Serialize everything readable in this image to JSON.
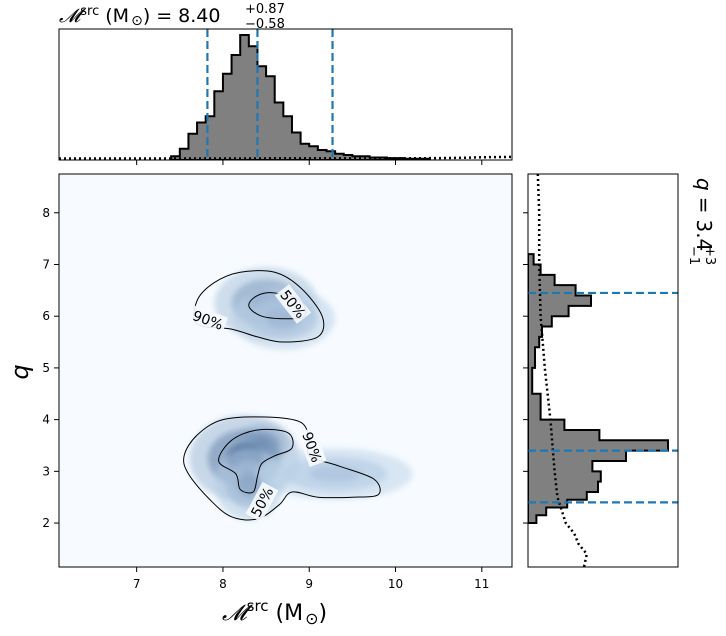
{
  "chart_data": {
    "type": "corner",
    "top_title": "𝓜src (M⊙) = 8.40+0.87−0.58",
    "top_title_parts": {
      "base": "𝓜",
      "sup": "src",
      "unit": "(M",
      "odot": "⊙",
      "close": ")",
      "eq": "=",
      "median": "8.40",
      "upper": "+0.87",
      "lower": "−0.58"
    },
    "right_title_parts": {
      "symbol": "q",
      "eq": "=",
      "median": "3.4",
      "upper": "+3",
      "lower": "−1"
    },
    "xlabel_parts": {
      "base": "𝓜",
      "sup": "src",
      "unit": "(M",
      "odot": "⊙",
      "close": ")"
    },
    "ylabel": "q",
    "xlim": [
      6.1,
      11.35
    ],
    "ylim": [
      1.15,
      8.75
    ],
    "xticks": [
      "7",
      "8",
      "9",
      "10",
      "11"
    ],
    "yticks": [
      "2",
      "3",
      "4",
      "5",
      "6",
      "7",
      "8"
    ],
    "quantile_lines_x": [
      7.82,
      8.4,
      9.27
    ],
    "quantile_lines_y": [
      2.4,
      3.4,
      6.45
    ],
    "contour_labels": [
      "50%",
      "90%",
      "90%",
      "50%"
    ],
    "mass_histogram": {
      "bin_edges": [
        7.4,
        7.5,
        7.6,
        7.7,
        7.8,
        7.9,
        8.0,
        8.1,
        8.2,
        8.3,
        8.4,
        8.5,
        8.6,
        8.7,
        8.8,
        8.9,
        9.0,
        9.1,
        9.2,
        9.3,
        9.4,
        9.5,
        9.7,
        9.9,
        10.1,
        10.4
      ],
      "counts": [
        0.03,
        0.09,
        0.21,
        0.3,
        0.35,
        0.55,
        0.69,
        0.84,
        1.0,
        0.91,
        0.75,
        0.67,
        0.46,
        0.35,
        0.22,
        0.13,
        0.11,
        0.08,
        0.07,
        0.05,
        0.04,
        0.03,
        0.02,
        0.015,
        0.01
      ]
    },
    "q_histogram": {
      "bin_edges": [
        2.0,
        2.15,
        2.3,
        2.45,
        2.6,
        2.8,
        3.0,
        3.2,
        3.4,
        3.6,
        3.8,
        4.0,
        4.5,
        5.0,
        5.4,
        5.6,
        5.8,
        6.0,
        6.2,
        6.4,
        6.6,
        6.8,
        7.0,
        7.2
      ],
      "counts": [
        0.06,
        0.13,
        0.28,
        0.42,
        0.5,
        0.52,
        0.46,
        0.7,
        1.0,
        0.51,
        0.26,
        0.09,
        0.03,
        0.05,
        0.08,
        0.1,
        0.17,
        0.29,
        0.45,
        0.34,
        0.19,
        0.09,
        0.04
      ]
    },
    "prior_mass_curve": {
      "x": [
        6.1,
        7.0,
        8.0,
        9.0,
        10.0,
        10.5,
        10.8,
        11.0,
        11.35
      ],
      "y": [
        0.012,
        0.012,
        0.012,
        0.013,
        0.013,
        0.015,
        0.018,
        0.022,
        0.025
      ]
    },
    "prior_q_curve": {
      "q": [
        8.75,
        8.0,
        7.0,
        6.0,
        5.0,
        4.0,
        3.0,
        2.5,
        2.0,
        1.8,
        1.6,
        1.4,
        1.15
      ],
      "density": [
        0.07,
        0.08,
        0.08,
        0.09,
        0.12,
        0.16,
        0.19,
        0.21,
        0.27,
        0.33,
        0.36,
        0.42,
        0.4
      ]
    },
    "density_blobs": [
      {
        "cx": 8.45,
        "cy": 3.52,
        "sx": 0.16,
        "sy": 0.2,
        "w": 1.0
      },
      {
        "cx": 8.25,
        "cy": 3.25,
        "sx": 0.32,
        "sy": 0.42,
        "w": 0.65
      },
      {
        "cx": 8.3,
        "cy": 2.75,
        "sx": 0.2,
        "sy": 0.35,
        "w": 0.3
      },
      {
        "cx": 9.3,
        "cy": 2.95,
        "sx": 0.45,
        "sy": 0.25,
        "w": 0.12
      },
      {
        "cx": 8.5,
        "cy": 6.25,
        "sx": 0.3,
        "sy": 0.35,
        "w": 0.45
      },
      {
        "cx": 8.7,
        "cy": 5.95,
        "sx": 0.3,
        "sy": 0.3,
        "w": 0.2
      }
    ],
    "contours": {
      "lower_90": [
        [
          7.6,
          2.95
        ],
        [
          7.55,
          3.3
        ],
        [
          7.7,
          3.7
        ],
        [
          8.0,
          4.0
        ],
        [
          8.5,
          4.05
        ],
        [
          8.9,
          3.95
        ],
        [
          9.0,
          3.6
        ],
        [
          9.0,
          3.3
        ],
        [
          9.35,
          3.1
        ],
        [
          9.75,
          2.85
        ],
        [
          9.8,
          2.55
        ],
        [
          9.5,
          2.5
        ],
        [
          9.1,
          2.5
        ],
        [
          8.8,
          2.6
        ],
        [
          8.65,
          2.35
        ],
        [
          8.4,
          2.08
        ],
        [
          8.1,
          2.12
        ],
        [
          7.85,
          2.45
        ]
      ],
      "lower_50": [
        [
          7.95,
          3.2
        ],
        [
          8.1,
          3.6
        ],
        [
          8.4,
          3.8
        ],
        [
          8.75,
          3.75
        ],
        [
          8.8,
          3.45
        ],
        [
          8.6,
          3.3
        ],
        [
          8.45,
          3.15
        ],
        [
          8.4,
          2.9
        ],
        [
          8.35,
          2.6
        ],
        [
          8.2,
          2.65
        ],
        [
          8.15,
          2.95
        ]
      ],
      "upper_90": [
        [
          7.7,
          6.3
        ],
        [
          7.9,
          6.65
        ],
        [
          8.2,
          6.85
        ],
        [
          8.6,
          6.85
        ],
        [
          8.9,
          6.55
        ],
        [
          9.15,
          6.0
        ],
        [
          9.1,
          5.6
        ],
        [
          8.7,
          5.5
        ],
        [
          8.4,
          5.6
        ],
        [
          8.1,
          5.75
        ],
        [
          7.7,
          5.85
        ]
      ],
      "upper_50": [
        [
          8.3,
          6.2
        ],
        [
          8.4,
          6.4
        ],
        [
          8.6,
          6.45
        ],
        [
          8.9,
          6.3
        ],
        [
          8.95,
          6.0
        ],
        [
          8.75,
          5.95
        ],
        [
          8.45,
          6.0
        ]
      ]
    },
    "style": {
      "hist_fill": "#808080",
      "hist_edge": "#000000",
      "quantile_color": "#1f77b4",
      "cmap_light": "#f7fbff",
      "cmap_dark": "#08306b"
    }
  }
}
